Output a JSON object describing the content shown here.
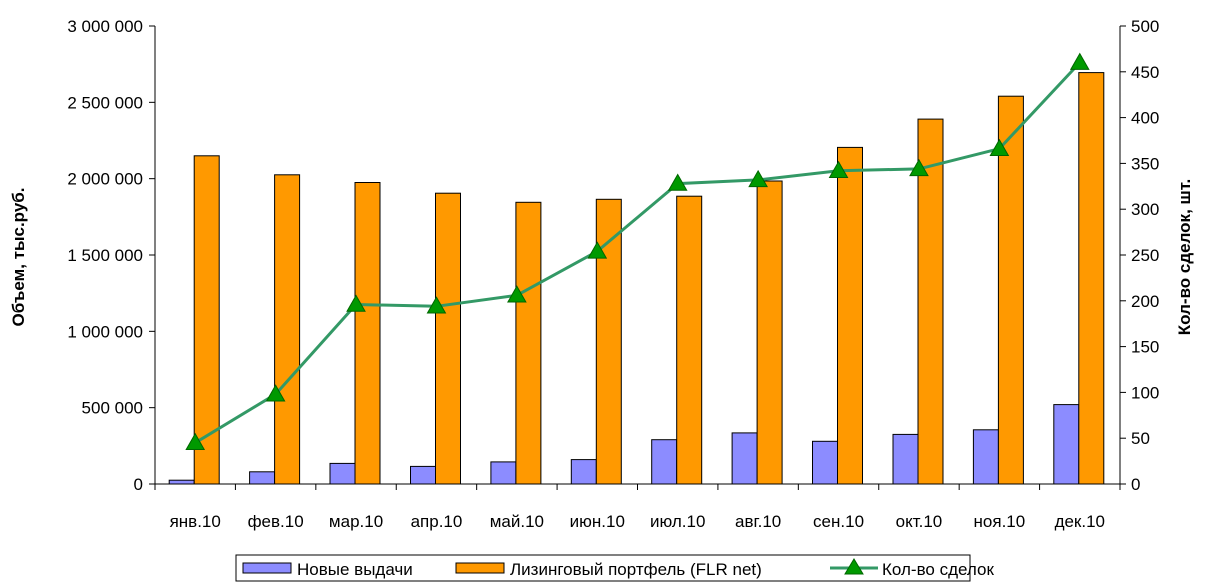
{
  "chart_data": {
    "type": "bar",
    "categories": [
      "янв.10",
      "фев.10",
      "мар.10",
      "апр.10",
      "май.10",
      "июн.10",
      "июл.10",
      "авг.10",
      "сен.10",
      "окт.10",
      "ноя.10",
      "дек.10"
    ],
    "series": [
      {
        "name": "Новые выдачи",
        "type": "bar",
        "axis": "left",
        "color": "#8c8cff",
        "values": [
          25000,
          80000,
          135000,
          115000,
          145000,
          160000,
          290000,
          335000,
          280000,
          325000,
          355000,
          520000
        ]
      },
      {
        "name": "Лизинговый портфель (FLR net)",
        "type": "bar",
        "axis": "left",
        "color": "#ff9900",
        "values": [
          2150000,
          2025000,
          1975000,
          1905000,
          1845000,
          1865000,
          1885000,
          1985000,
          2205000,
          2390000,
          2540000,
          2695000
        ]
      },
      {
        "name": "Кол-во сделок",
        "type": "line",
        "axis": "right",
        "color": "#339966",
        "marker": "triangle",
        "marker_color": "#009900",
        "values": [
          45,
          98,
          196,
          194,
          206,
          254,
          328,
          332,
          342,
          344,
          366,
          460
        ]
      }
    ],
    "ylabel": "Объем, тыс.руб.",
    "y2label": "Кол-во сделок, шт.",
    "ylim": [
      0,
      3000000
    ],
    "y2lim": [
      0,
      500
    ],
    "yticks": [
      "0",
      "500 000",
      "1 000 000",
      "1 500 000",
      "2 000 000",
      "2 500 000",
      "3 000 000"
    ],
    "y2ticks": [
      "0",
      "50",
      "100",
      "150",
      "200",
      "250",
      "300",
      "350",
      "400",
      "450",
      "500"
    ],
    "grid": false,
    "legend_position": "bottom"
  }
}
